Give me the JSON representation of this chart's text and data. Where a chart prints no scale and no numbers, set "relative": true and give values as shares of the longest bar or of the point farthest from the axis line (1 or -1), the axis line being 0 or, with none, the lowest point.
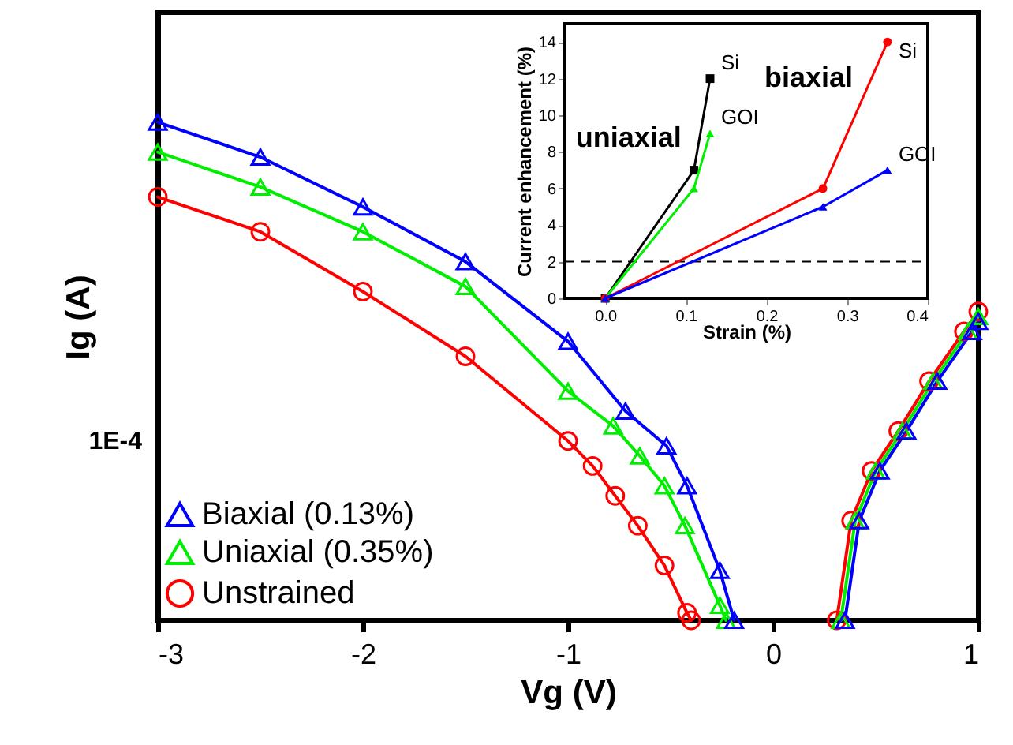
{
  "chart_data": [
    {
      "type": "line",
      "xlabel": "Vg (V)",
      "ylabel": "Ig (A)",
      "relative": true,
      "xlim": [
        -3,
        1
      ],
      "xticks": [
        -3,
        -2,
        -1,
        0,
        1
      ],
      "legend": "bottom left",
      "grid": false,
      "annotations": [
        "1E-4"
      ],
      "series": [
        {
          "name": "Biaxial (0.13%)",
          "color": "#0000ff",
          "marker": "triangle",
          "x": [
            -3,
            -2.5,
            -2,
            -1.5,
            -1,
            -0.72,
            -0.52,
            -0.42,
            -0.26,
            -0.19,
            null,
            0.35,
            0.42,
            0.52,
            0.65,
            0.8,
            0.97,
            1.0
          ],
          "values": [
            1.0,
            0.93,
            0.83,
            0.72,
            0.56,
            0.42,
            0.35,
            0.27,
            0.1,
            0,
            null,
            0,
            0.2,
            0.3,
            0.38,
            0.48,
            0.58,
            0.6
          ]
        },
        {
          "name": "Uniaxial (0.35%)",
          "color": "#00ee00",
          "marker": "triangle",
          "x": [
            -3,
            -2.5,
            -2,
            -1.5,
            -1,
            -0.78,
            -0.65,
            -0.53,
            -0.43,
            -0.26,
            -0.23,
            null,
            0.33,
            0.4,
            0.5,
            0.63,
            0.78,
            0.95,
            1.0
          ],
          "values": [
            0.94,
            0.87,
            0.78,
            0.67,
            0.46,
            0.39,
            0.33,
            0.27,
            0.19,
            0.03,
            0,
            null,
            0,
            0.2,
            0.3,
            0.38,
            0.48,
            0.58,
            0.61
          ]
        },
        {
          "name": "Unstrained",
          "color": "#ff0000",
          "marker": "circle",
          "x": [
            -3,
            -2.5,
            -2,
            -1.5,
            -1,
            -0.88,
            -0.77,
            -0.66,
            -0.53,
            -0.42,
            -0.4,
            null,
            0.31,
            0.38,
            0.48,
            0.61,
            0.76,
            0.93,
            1.0
          ],
          "values": [
            0.85,
            0.78,
            0.66,
            0.53,
            0.36,
            0.31,
            0.25,
            0.19,
            0.11,
            0.015,
            0,
            null,
            0,
            0.2,
            0.3,
            0.38,
            0.48,
            0.58,
            0.62
          ]
        }
      ]
    },
    {
      "type": "line",
      "xlabel": "Strain (%)",
      "ylabel": "Current enhancement (%)",
      "xlim": [
        -0.05,
        0.4
      ],
      "ylim": [
        0,
        15
      ],
      "xticks": [
        {
          "value": 0,
          "label": "0.0"
        },
        0.1,
        0.2,
        0.3,
        0.4
      ],
      "yticks": [
        0,
        2,
        4,
        6,
        8,
        10,
        12,
        14
      ],
      "grid": false,
      "ref_lines": [
        {
          "axis": "y",
          "value": 2,
          "color": "#000000",
          "line_style": "dashed"
        }
      ],
      "annotations": [
        "uniaxial",
        "biaxial"
      ],
      "series": [
        {
          "name": "Si",
          "color": "#000000",
          "marker": "square",
          "x": [
            0,
            0.11,
            0.13
          ],
          "values": [
            0,
            7,
            12
          ]
        },
        {
          "name": "GOI",
          "color": "#00ee00",
          "marker": "triangle",
          "x": [
            0,
            0.11,
            0.13
          ],
          "values": [
            0,
            6,
            9
          ]
        },
        {
          "name": "Si",
          "color": "#ff0000",
          "marker": "circle",
          "x": [
            0,
            0.27,
            0.35
          ],
          "values": [
            0,
            6,
            14
          ]
        },
        {
          "name": "GOI",
          "color": "#0000ff",
          "marker": "triangle",
          "x": [
            0,
            0.27,
            0.35
          ],
          "values": [
            0,
            5,
            7
          ]
        }
      ]
    }
  ]
}
